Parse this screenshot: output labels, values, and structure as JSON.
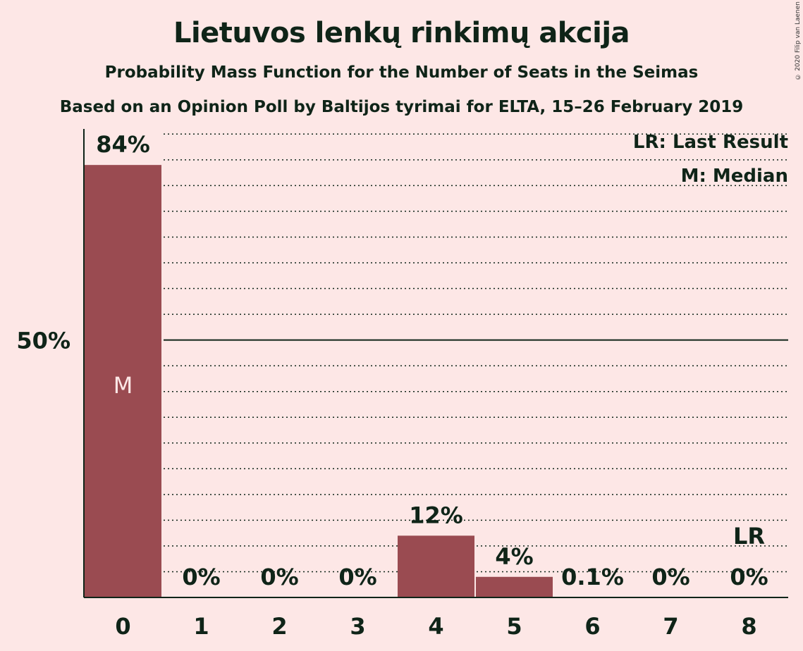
{
  "title": "Lietuvos lenkų rinkimų akcija",
  "subtitle1": "Probability Mass Function for the Number of Seats in the Seimas",
  "subtitle2": "Based on an Opinion Poll by Baltijos tyrimai for ELTA, 15–26 February 2019",
  "copyright": "© 2020 Filip van Laenen",
  "legend": {
    "last_result": "LR: Last Result",
    "median": "M: Median"
  },
  "chart_data": {
    "type": "bar",
    "categories": [
      "0",
      "1",
      "2",
      "3",
      "4",
      "5",
      "6",
      "7",
      "8"
    ],
    "values": [
      84,
      0,
      0,
      0,
      12,
      4,
      0.1,
      0,
      0
    ],
    "value_labels": [
      "84%",
      "0%",
      "0%",
      "0%",
      "12%",
      "4%",
      "0.1%",
      "0%",
      "0%"
    ],
    "ylim": [
      0,
      91
    ],
    "y_tick_label": "50%",
    "median_index": 0,
    "median_marker": "M",
    "last_result_index": 8,
    "last_result_marker": "LR",
    "bar_color": "#9A4B51",
    "background": "#FDE7E6"
  }
}
